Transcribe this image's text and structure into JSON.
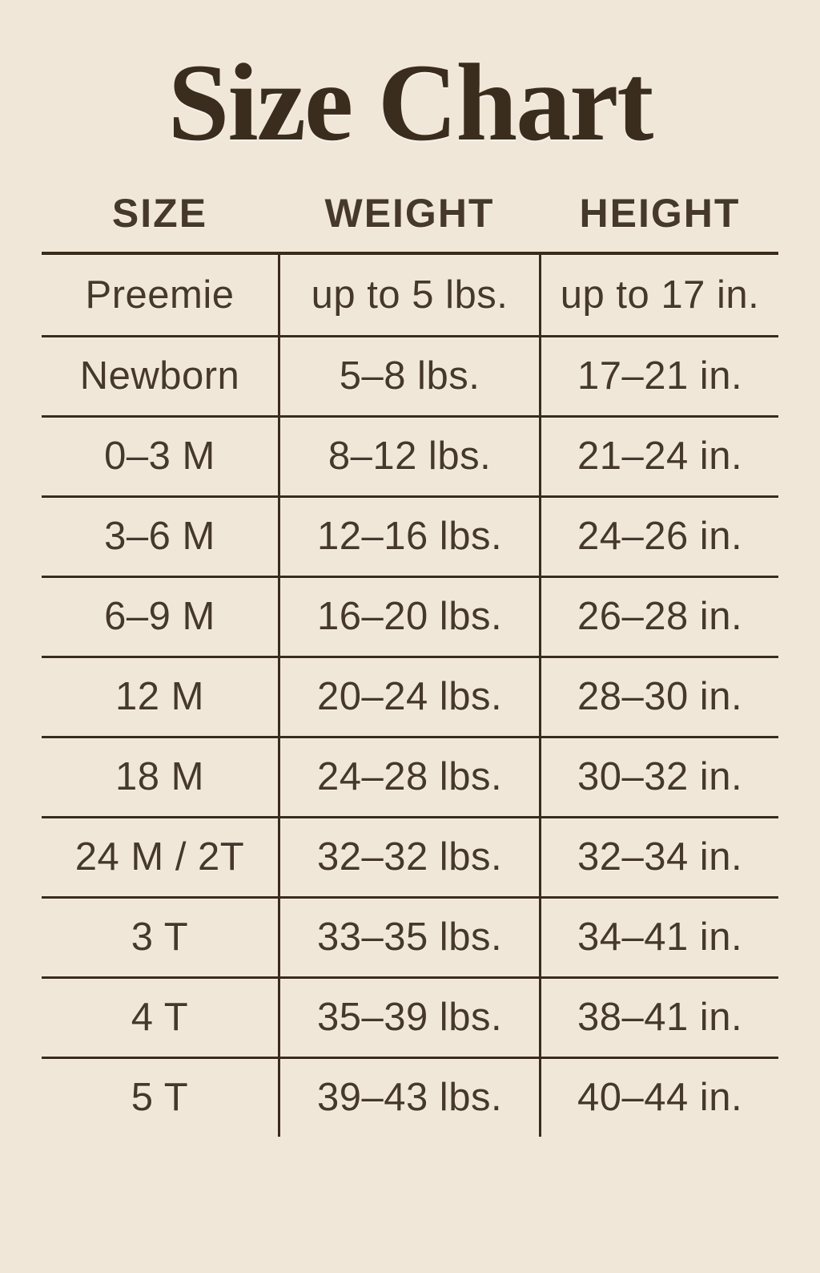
{
  "title": "Size Chart",
  "colors": {
    "background": "#F0E7D9",
    "title_text": "#3B2D1E",
    "body_text": "#46382A",
    "line": "#3A2C1B"
  },
  "chart_data": {
    "type": "table",
    "title": "Size Chart",
    "columns": [
      "SIZE",
      "WEIGHT",
      "HEIGHT"
    ],
    "rows": [
      [
        "Preemie",
        "up to 5 lbs.",
        "up to 17 in."
      ],
      [
        "Newborn",
        "5–8 lbs.",
        "17–21 in."
      ],
      [
        "0–3 M",
        "8–12 lbs.",
        "21–24 in."
      ],
      [
        "3–6 M",
        "12–16 lbs.",
        "24–26 in."
      ],
      [
        "6–9 M",
        "16–20 lbs.",
        "26–28 in."
      ],
      [
        "12 M",
        "20–24 lbs.",
        "28–30 in."
      ],
      [
        "18 M",
        "24–28 lbs.",
        "30–32 in."
      ],
      [
        "24 M / 2T",
        "32–32 lbs.",
        "32–34 in."
      ],
      [
        "3 T",
        "33–35 lbs.",
        "34–41 in."
      ],
      [
        "4 T",
        "35–39 lbs.",
        "38–41 in."
      ],
      [
        "5 T",
        "39–43 lbs.",
        "40–44 in."
      ]
    ],
    "layout": {
      "grid": "rules between rows and columns, no outer border, open bottom edge"
    }
  }
}
